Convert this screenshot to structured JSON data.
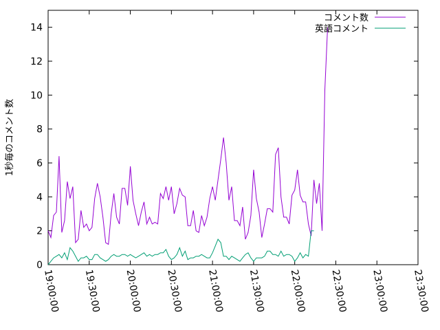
{
  "chart_data": {
    "type": "line",
    "title": "",
    "xlabel": "",
    "ylabel": "1秒毎のコメント数",
    "ylim": [
      0,
      15
    ],
    "yticks": [
      0,
      2,
      4,
      6,
      8,
      10,
      12,
      14
    ],
    "xlim": [
      "19:00:00",
      "23:30:00"
    ],
    "xticks": [
      "19:00:00",
      "19:30:00",
      "20:00:00",
      "20:30:00",
      "21:00:00",
      "21:30:00",
      "22:00:00",
      "22:30:00",
      "23:00:00",
      "23:30:00"
    ],
    "grid": false,
    "legend_position": "top-right",
    "series": [
      {
        "name": "コメント数",
        "color": "#9400d3",
        "points": [
          [
            "19:00:00",
            2.0
          ],
          [
            "19:02:00",
            1.6
          ],
          [
            "19:04:00",
            2.9
          ],
          [
            "19:06:00",
            3.1
          ],
          [
            "19:08:00",
            6.4
          ],
          [
            "19:10:00",
            1.9
          ],
          [
            "19:12:00",
            2.6
          ],
          [
            "19:14:00",
            4.9
          ],
          [
            "19:16:00",
            3.9
          ],
          [
            "19:18:00",
            4.6
          ],
          [
            "19:20:00",
            1.3
          ],
          [
            "19:22:00",
            1.5
          ],
          [
            "19:24:00",
            3.2
          ],
          [
            "19:26:00",
            2.2
          ],
          [
            "19:28:00",
            2.4
          ],
          [
            "19:30:00",
            2.0
          ],
          [
            "19:32:00",
            2.2
          ],
          [
            "19:34:00",
            3.9
          ],
          [
            "19:36:00",
            4.8
          ],
          [
            "19:38:00",
            4.0
          ],
          [
            "19:40:00",
            2.8
          ],
          [
            "19:42:00",
            1.3
          ],
          [
            "19:44:00",
            1.2
          ],
          [
            "19:46:00",
            3.0
          ],
          [
            "19:48:00",
            4.2
          ],
          [
            "19:50:00",
            2.8
          ],
          [
            "19:52:00",
            2.4
          ],
          [
            "19:54:00",
            4.5
          ],
          [
            "19:56:00",
            4.5
          ],
          [
            "19:58:00",
            3.5
          ],
          [
            "20:00:00",
            5.8
          ],
          [
            "20:02:00",
            3.8
          ],
          [
            "20:04:00",
            3.0
          ],
          [
            "20:06:00",
            2.3
          ],
          [
            "20:08:00",
            3.1
          ],
          [
            "20:10:00",
            3.7
          ],
          [
            "20:12:00",
            2.4
          ],
          [
            "20:14:00",
            2.8
          ],
          [
            "20:16:00",
            2.4
          ],
          [
            "20:18:00",
            2.5
          ],
          [
            "20:20:00",
            2.4
          ],
          [
            "20:22:00",
            4.2
          ],
          [
            "20:24:00",
            3.9
          ],
          [
            "20:26:00",
            4.6
          ],
          [
            "20:28:00",
            3.8
          ],
          [
            "20:30:00",
            4.6
          ],
          [
            "20:32:00",
            3.0
          ],
          [
            "20:34:00",
            3.6
          ],
          [
            "20:36:00",
            4.5
          ],
          [
            "20:38:00",
            4.1
          ],
          [
            "20:40:00",
            4.0
          ],
          [
            "20:42:00",
            2.3
          ],
          [
            "20:44:00",
            2.3
          ],
          [
            "20:46:00",
            3.2
          ],
          [
            "20:48:00",
            2.0
          ],
          [
            "20:50:00",
            1.9
          ],
          [
            "20:52:00",
            2.9
          ],
          [
            "20:54:00",
            2.3
          ],
          [
            "20:56:00",
            2.8
          ],
          [
            "20:58:00",
            3.9
          ],
          [
            "21:00:00",
            4.6
          ],
          [
            "21:02:00",
            3.8
          ],
          [
            "21:04:00",
            5.0
          ],
          [
            "21:06:00",
            6.2
          ],
          [
            "21:08:00",
            7.5
          ],
          [
            "21:10:00",
            6.0
          ],
          [
            "21:12:00",
            3.8
          ],
          [
            "21:14:00",
            4.6
          ],
          [
            "21:16:00",
            2.6
          ],
          [
            "21:18:00",
            2.6
          ],
          [
            "21:20:00",
            2.3
          ],
          [
            "21:22:00",
            3.4
          ],
          [
            "21:24:00",
            1.5
          ],
          [
            "21:26:00",
            1.9
          ],
          [
            "21:28:00",
            2.9
          ],
          [
            "21:30:00",
            5.6
          ],
          [
            "21:32:00",
            3.9
          ],
          [
            "21:34:00",
            3.1
          ],
          [
            "21:36:00",
            1.6
          ],
          [
            "21:38:00",
            2.4
          ],
          [
            "21:40:00",
            3.3
          ],
          [
            "21:42:00",
            3.3
          ],
          [
            "21:44:00",
            3.1
          ],
          [
            "21:46:00",
            6.5
          ],
          [
            "21:48:00",
            6.9
          ],
          [
            "21:50:00",
            4.0
          ],
          [
            "21:52:00",
            2.8
          ],
          [
            "21:54:00",
            2.8
          ],
          [
            "21:56:00",
            2.4
          ],
          [
            "21:58:00",
            4.1
          ],
          [
            "22:00:00",
            4.4
          ],
          [
            "22:02:00",
            5.6
          ],
          [
            "22:04:00",
            4.1
          ],
          [
            "22:06:00",
            3.7
          ],
          [
            "22:08:00",
            3.7
          ],
          [
            "22:10:00",
            2.4
          ],
          [
            "22:12:00",
            1.7
          ],
          [
            "22:14:00",
            5.0
          ],
          [
            "22:16:00",
            3.6
          ],
          [
            "22:18:00",
            4.8
          ],
          [
            "22:20:00",
            2.0
          ],
          [
            "22:22:00",
            10.3
          ],
          [
            "22:24:00",
            14.0
          ]
        ]
      },
      {
        "name": "英語コメント",
        "color": "#009e73",
        "points": [
          [
            "19:00:00",
            0.0
          ],
          [
            "19:02:00",
            0.2
          ],
          [
            "19:04:00",
            0.4
          ],
          [
            "19:06:00",
            0.5
          ],
          [
            "19:08:00",
            0.6
          ],
          [
            "19:10:00",
            0.4
          ],
          [
            "19:12:00",
            0.7
          ],
          [
            "19:14:00",
            0.3
          ],
          [
            "19:16:00",
            1.0
          ],
          [
            "19:18:00",
            0.8
          ],
          [
            "19:20:00",
            0.5
          ],
          [
            "19:22:00",
            0.2
          ],
          [
            "19:24:00",
            0.4
          ],
          [
            "19:26:00",
            0.4
          ],
          [
            "19:28:00",
            0.5
          ],
          [
            "19:30:00",
            0.3
          ],
          [
            "19:32:00",
            0.3
          ],
          [
            "19:34:00",
            0.6
          ],
          [
            "19:36:00",
            0.6
          ],
          [
            "19:38:00",
            0.4
          ],
          [
            "19:40:00",
            0.3
          ],
          [
            "19:42:00",
            0.2
          ],
          [
            "19:44:00",
            0.3
          ],
          [
            "19:46:00",
            0.5
          ],
          [
            "19:48:00",
            0.6
          ],
          [
            "19:50:00",
            0.5
          ],
          [
            "19:52:00",
            0.5
          ],
          [
            "19:54:00",
            0.6
          ],
          [
            "19:56:00",
            0.6
          ],
          [
            "19:58:00",
            0.5
          ],
          [
            "20:00:00",
            0.6
          ],
          [
            "20:02:00",
            0.5
          ],
          [
            "20:04:00",
            0.4
          ],
          [
            "20:06:00",
            0.5
          ],
          [
            "20:08:00",
            0.6
          ],
          [
            "20:10:00",
            0.7
          ],
          [
            "20:12:00",
            0.5
          ],
          [
            "20:14:00",
            0.6
          ],
          [
            "20:16:00",
            0.5
          ],
          [
            "20:18:00",
            0.6
          ],
          [
            "20:20:00",
            0.6
          ],
          [
            "20:22:00",
            0.7
          ],
          [
            "20:24:00",
            0.7
          ],
          [
            "20:26:00",
            0.9
          ],
          [
            "20:28:00",
            0.5
          ],
          [
            "20:30:00",
            0.3
          ],
          [
            "20:32:00",
            0.4
          ],
          [
            "20:34:00",
            0.6
          ],
          [
            "20:36:00",
            1.0
          ],
          [
            "20:38:00",
            0.5
          ],
          [
            "20:40:00",
            0.8
          ],
          [
            "20:42:00",
            0.3
          ],
          [
            "20:44:00",
            0.4
          ],
          [
            "20:46:00",
            0.4
          ],
          [
            "20:48:00",
            0.5
          ],
          [
            "20:50:00",
            0.5
          ],
          [
            "20:52:00",
            0.6
          ],
          [
            "20:54:00",
            0.5
          ],
          [
            "20:56:00",
            0.4
          ],
          [
            "20:58:00",
            0.4
          ],
          [
            "21:00:00",
            0.7
          ],
          [
            "21:02:00",
            1.1
          ],
          [
            "21:04:00",
            1.5
          ],
          [
            "21:06:00",
            1.3
          ],
          [
            "21:08:00",
            0.5
          ],
          [
            "21:10:00",
            0.5
          ],
          [
            "21:12:00",
            0.3
          ],
          [
            "21:14:00",
            0.5
          ],
          [
            "21:16:00",
            0.4
          ],
          [
            "21:18:00",
            0.3
          ],
          [
            "21:20:00",
            0.2
          ],
          [
            "21:22:00",
            0.4
          ],
          [
            "21:24:00",
            0.6
          ],
          [
            "21:26:00",
            0.7
          ],
          [
            "21:28:00",
            0.4
          ],
          [
            "21:30:00",
            0.2
          ],
          [
            "21:32:00",
            0.4
          ],
          [
            "21:34:00",
            0.4
          ],
          [
            "21:36:00",
            0.4
          ],
          [
            "21:38:00",
            0.5
          ],
          [
            "21:40:00",
            0.8
          ],
          [
            "21:42:00",
            0.8
          ],
          [
            "21:44:00",
            0.6
          ],
          [
            "21:46:00",
            0.6
          ],
          [
            "21:48:00",
            0.5
          ],
          [
            "21:50:00",
            0.8
          ],
          [
            "21:52:00",
            0.5
          ],
          [
            "21:54:00",
            0.6
          ],
          [
            "21:56:00",
            0.6
          ],
          [
            "21:58:00",
            0.5
          ],
          [
            "22:00:00",
            0.2
          ],
          [
            "22:02:00",
            0.4
          ],
          [
            "22:04:00",
            0.7
          ],
          [
            "22:06:00",
            0.4
          ],
          [
            "22:08:00",
            0.6
          ],
          [
            "22:10:00",
            0.5
          ],
          [
            "22:12:00",
            2.0
          ],
          [
            "22:14:00",
            2.0
          ]
        ]
      }
    ]
  }
}
